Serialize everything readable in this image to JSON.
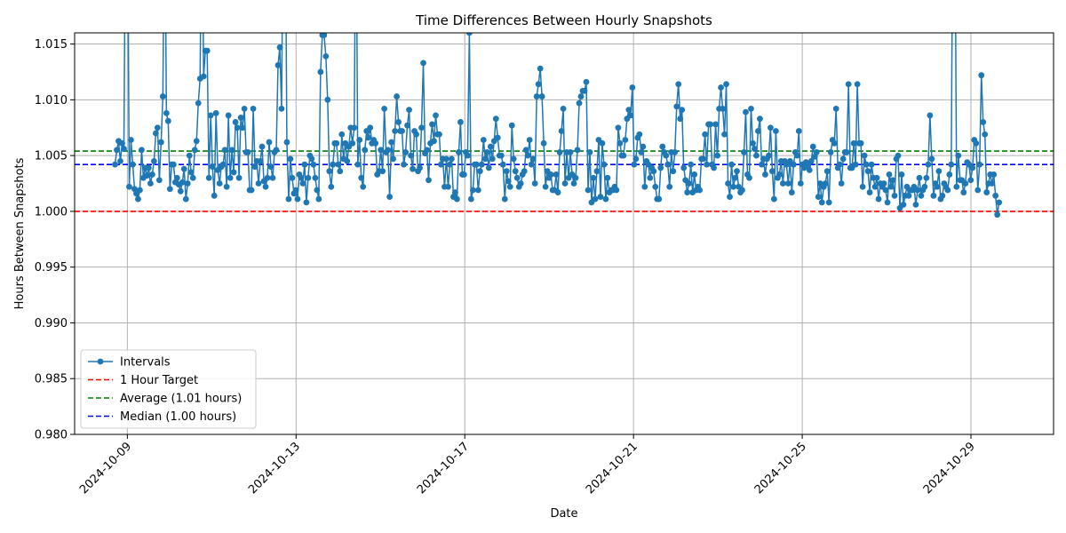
{
  "chart_data": {
    "type": "line",
    "title": "Time Differences Between Hourly Snapshots",
    "xlabel": "Date",
    "ylabel": "Hours Between Snapshots",
    "x_range": [
      "2024-10-07 18:00",
      "2024-10-30 23:00"
    ],
    "ylim": [
      0.98,
      1.016
    ],
    "x_ticks": [
      "2024-10-09",
      "2024-10-13",
      "2024-10-17",
      "2024-10-21",
      "2024-10-25",
      "2024-10-29"
    ],
    "y_ticks": [
      "0.980",
      "0.985",
      "0.990",
      "0.995",
      "1.000",
      "1.005",
      "1.010",
      "1.015"
    ],
    "grid": true,
    "legend_position": "lower-left",
    "series": [
      {
        "name": "Intervals",
        "color": "#1f77b4",
        "marker": "circle",
        "start": "2024-10-08 17:00",
        "end": "2024-10-29 16:00",
        "values": [
          1.0042,
          1.0055,
          1.0063,
          1.0045,
          1.0061,
          1.0056,
          1.03,
          1.03,
          1.0022,
          1.0064,
          1.0042,
          1.002,
          1.0016,
          1.0011,
          1.0019,
          1.0055,
          1.003,
          1.0039,
          1.0032,
          1.0039,
          1.0025,
          1.0033,
          1.0045,
          1.007,
          1.0075,
          1.0028,
          1.0062,
          1.0103,
          1.03,
          1.0088,
          1.0081,
          1.002,
          1.0042,
          1.0042,
          1.0026,
          1.003,
          1.0024,
          1.0018,
          1.0026,
          1.0038,
          1.0011,
          1.0025,
          1.005,
          1.0035,
          1.003,
          1.0055,
          1.0063,
          1.0097,
          1.0119,
          1.03,
          1.0121,
          1.0144,
          1.0144,
          1.003,
          1.0086,
          1.004,
          1.0014,
          1.0088,
          1.0037,
          1.0025,
          1.004,
          1.0042,
          1.0055,
          1.0022,
          1.0086,
          1.003,
          1.0055,
          1.0035,
          1.008,
          1.0075,
          1.003,
          1.0084,
          1.0075,
          1.0092,
          1.0053,
          1.0053,
          1.0019,
          1.0019,
          1.0092,
          1.004,
          1.0045,
          1.0025,
          1.0045,
          1.0058,
          1.0027,
          1.0022,
          1.003,
          1.0062,
          1.004,
          1.003,
          1.0053,
          1.0055,
          1.0131,
          1.0147,
          1.0092,
          1.03,
          1.03,
          1.0062,
          1.0011,
          1.0047,
          1.003,
          1.0016,
          1.0019,
          1.0011,
          1.0033,
          1.003,
          1.0025,
          1.0042,
          1.0008,
          1.003,
          1.005,
          1.0047,
          1.0042,
          1.003,
          1.0019,
          1.0011,
          1.0125,
          1.0158,
          1.0158,
          1.0139,
          1.01,
          1.0036,
          1.0022,
          1.0042,
          1.0061,
          1.0061,
          1.0042,
          1.0036,
          1.0069,
          1.0047,
          1.0061,
          1.0045,
          1.0058,
          1.0075,
          1.0061,
          1.0075,
          1.03,
          1.0042,
          1.0064,
          1.003,
          1.0022,
          1.0055,
          1.0072,
          1.0066,
          1.0075,
          1.0061,
          1.0064,
          1.0061,
          1.0033,
          1.0036,
          1.0055,
          1.0036,
          1.0092,
          1.0053,
          1.0055,
          1.0013,
          1.0062,
          1.0047,
          1.0072,
          1.0103,
          1.008,
          1.0072,
          1.0072,
          1.0042,
          1.0053,
          1.0077,
          1.0091,
          1.005,
          1.0038,
          1.0072,
          1.0069,
          1.0036,
          1.0039,
          1.0075,
          1.0133,
          1.0052,
          1.0055,
          1.0028,
          1.0061,
          1.0078,
          1.0063,
          1.0086,
          1.0069,
          1.0069,
          1.0042,
          1.0047,
          1.0022,
          1.0047,
          1.0022,
          1.0042,
          1.0047,
          1.0013,
          1.0017,
          1.0011,
          1.0053,
          1.008,
          1.0033,
          1.0033,
          1.0053,
          1.005,
          1.016,
          1.0011,
          1.0019,
          1.0042,
          1.0042,
          1.0019,
          1.0036,
          1.0042,
          1.0064,
          1.0047,
          1.0053,
          1.0039,
          1.0058,
          1.0047,
          1.0063,
          1.0083,
          1.0066,
          1.005,
          1.005,
          1.0042,
          1.0011,
          1.0036,
          1.0027,
          1.0022,
          1.0077,
          1.0047,
          1.0036,
          1.003,
          1.0022,
          1.0025,
          1.0033,
          1.0036,
          1.0055,
          1.005,
          1.0064,
          1.0042,
          1.0047,
          1.0025,
          1.0103,
          1.0114,
          1.0128,
          1.0103,
          1.0061,
          1.0022,
          1.0036,
          1.003,
          1.0033,
          1.0019,
          1.0019,
          1.0033,
          1.0017,
          1.0053,
          1.0072,
          1.0092,
          1.0025,
          1.0053,
          1.003,
          1.0053,
          1.0033,
          1.0025,
          1.003,
          1.0055,
          1.0097,
          1.0103,
          1.0108,
          1.0108,
          1.0116,
          1.0019,
          1.0053,
          1.0008,
          1.003,
          1.0011,
          1.0036,
          1.0064,
          1.0013,
          1.0061,
          1.0042,
          1.0011,
          1.003,
          1.0017,
          1.0019,
          1.0019,
          1.0022,
          1.0019,
          1.0075,
          1.0061,
          1.005,
          1.005,
          1.0064,
          1.0083,
          1.0091,
          1.0086,
          1.0111,
          1.0042,
          1.0047,
          1.0066,
          1.0069,
          1.0053,
          1.0058,
          1.0022,
          1.0045,
          1.0042,
          1.003,
          1.0039,
          1.0036,
          1.0022,
          1.0011,
          1.0011,
          1.0039,
          1.0058,
          1.0053,
          1.005,
          1.0042,
          1.0022,
          1.0053,
          1.0036,
          1.0053,
          1.0094,
          1.0114,
          1.0083,
          1.0091,
          1.0039,
          1.0028,
          1.0017,
          1.0025,
          1.0042,
          1.0017,
          1.0033,
          1.0019,
          1.0022,
          1.0019,
          1.0047,
          1.0047,
          1.0069,
          1.0042,
          1.0078,
          1.0078,
          1.0042,
          1.0039,
          1.0078,
          1.005,
          1.0092,
          1.0111,
          1.0092,
          1.0069,
          1.0114,
          1.0025,
          1.0013,
          1.0042,
          1.0022,
          1.003,
          1.0036,
          1.0022,
          1.0017,
          1.0019,
          1.0053,
          1.0089,
          1.0033,
          1.003,
          1.0092,
          1.0061,
          1.0056,
          1.005,
          1.0072,
          1.0083,
          1.0042,
          1.0047,
          1.0033,
          1.0047,
          1.005,
          1.0075,
          1.0036,
          1.0011,
          1.0072,
          1.003,
          1.0033,
          1.0045,
          1.0025,
          1.0045,
          1.0042,
          1.0025,
          1.0045,
          1.0017,
          1.0042,
          1.0053,
          1.005,
          1.0072,
          1.0025,
          1.0042,
          1.0039,
          1.0044,
          1.0041,
          1.0037,
          1.0045,
          1.0058,
          1.0049,
          1.0053,
          1.0013,
          1.0025,
          1.0008,
          1.0022,
          1.0025,
          1.0036,
          1.0008,
          1.0053,
          1.0064,
          1.0061,
          1.0092,
          1.0039,
          1.0042,
          1.0025,
          1.0047,
          1.0053,
          1.0053,
          1.0114,
          1.0039,
          1.0039,
          1.0061,
          1.0042,
          1.0114,
          1.0061,
          1.0061,
          1.0022,
          1.005,
          1.0042,
          1.0036,
          1.0017,
          1.0042,
          1.003,
          1.0022,
          1.003,
          1.0011,
          1.0025,
          1.0022,
          1.0025,
          1.0019,
          1.0008,
          1.0033,
          1.0022,
          1.0028,
          1.0014,
          1.0047,
          1.005,
          1.0003,
          1.0033,
          1.0006,
          1.0014,
          1.0022,
          1.0014,
          1.0019,
          1.0019,
          1.0022,
          1.0006,
          1.0019,
          1.003,
          1.0014,
          1.0019,
          1.0022,
          1.003,
          1.0042,
          1.0086,
          1.0047,
          1.0014,
          1.0025,
          1.0022,
          1.0036,
          1.0011,
          1.0014,
          1.0025,
          1.0022,
          1.0019,
          1.0033,
          1.0042,
          1.03,
          1.03,
          1.0022,
          1.005,
          1.0028,
          1.0028,
          1.0017,
          1.0025,
          1.0044,
          1.0042,
          1.0028,
          1.0039,
          1.0064,
          1.0061,
          1.0019,
          1.0042,
          1.0122,
          1.008,
          1.0069,
          1.0017,
          1.0025,
          1.0033,
          1.0025,
          1.0033,
          1.0014,
          0.9997,
          1.0008
        ]
      },
      {
        "name": "1 Hour Target",
        "color": "#ff0000",
        "style": "dashed",
        "value": 1.0
      },
      {
        "name": "Average (1.01 hours)",
        "color": "#008000",
        "style": "dashed",
        "value": 1.0054
      },
      {
        "name": "Median (1.00 hours)",
        "color": "#0000ff",
        "style": "dashed",
        "value": 1.0042
      }
    ]
  }
}
